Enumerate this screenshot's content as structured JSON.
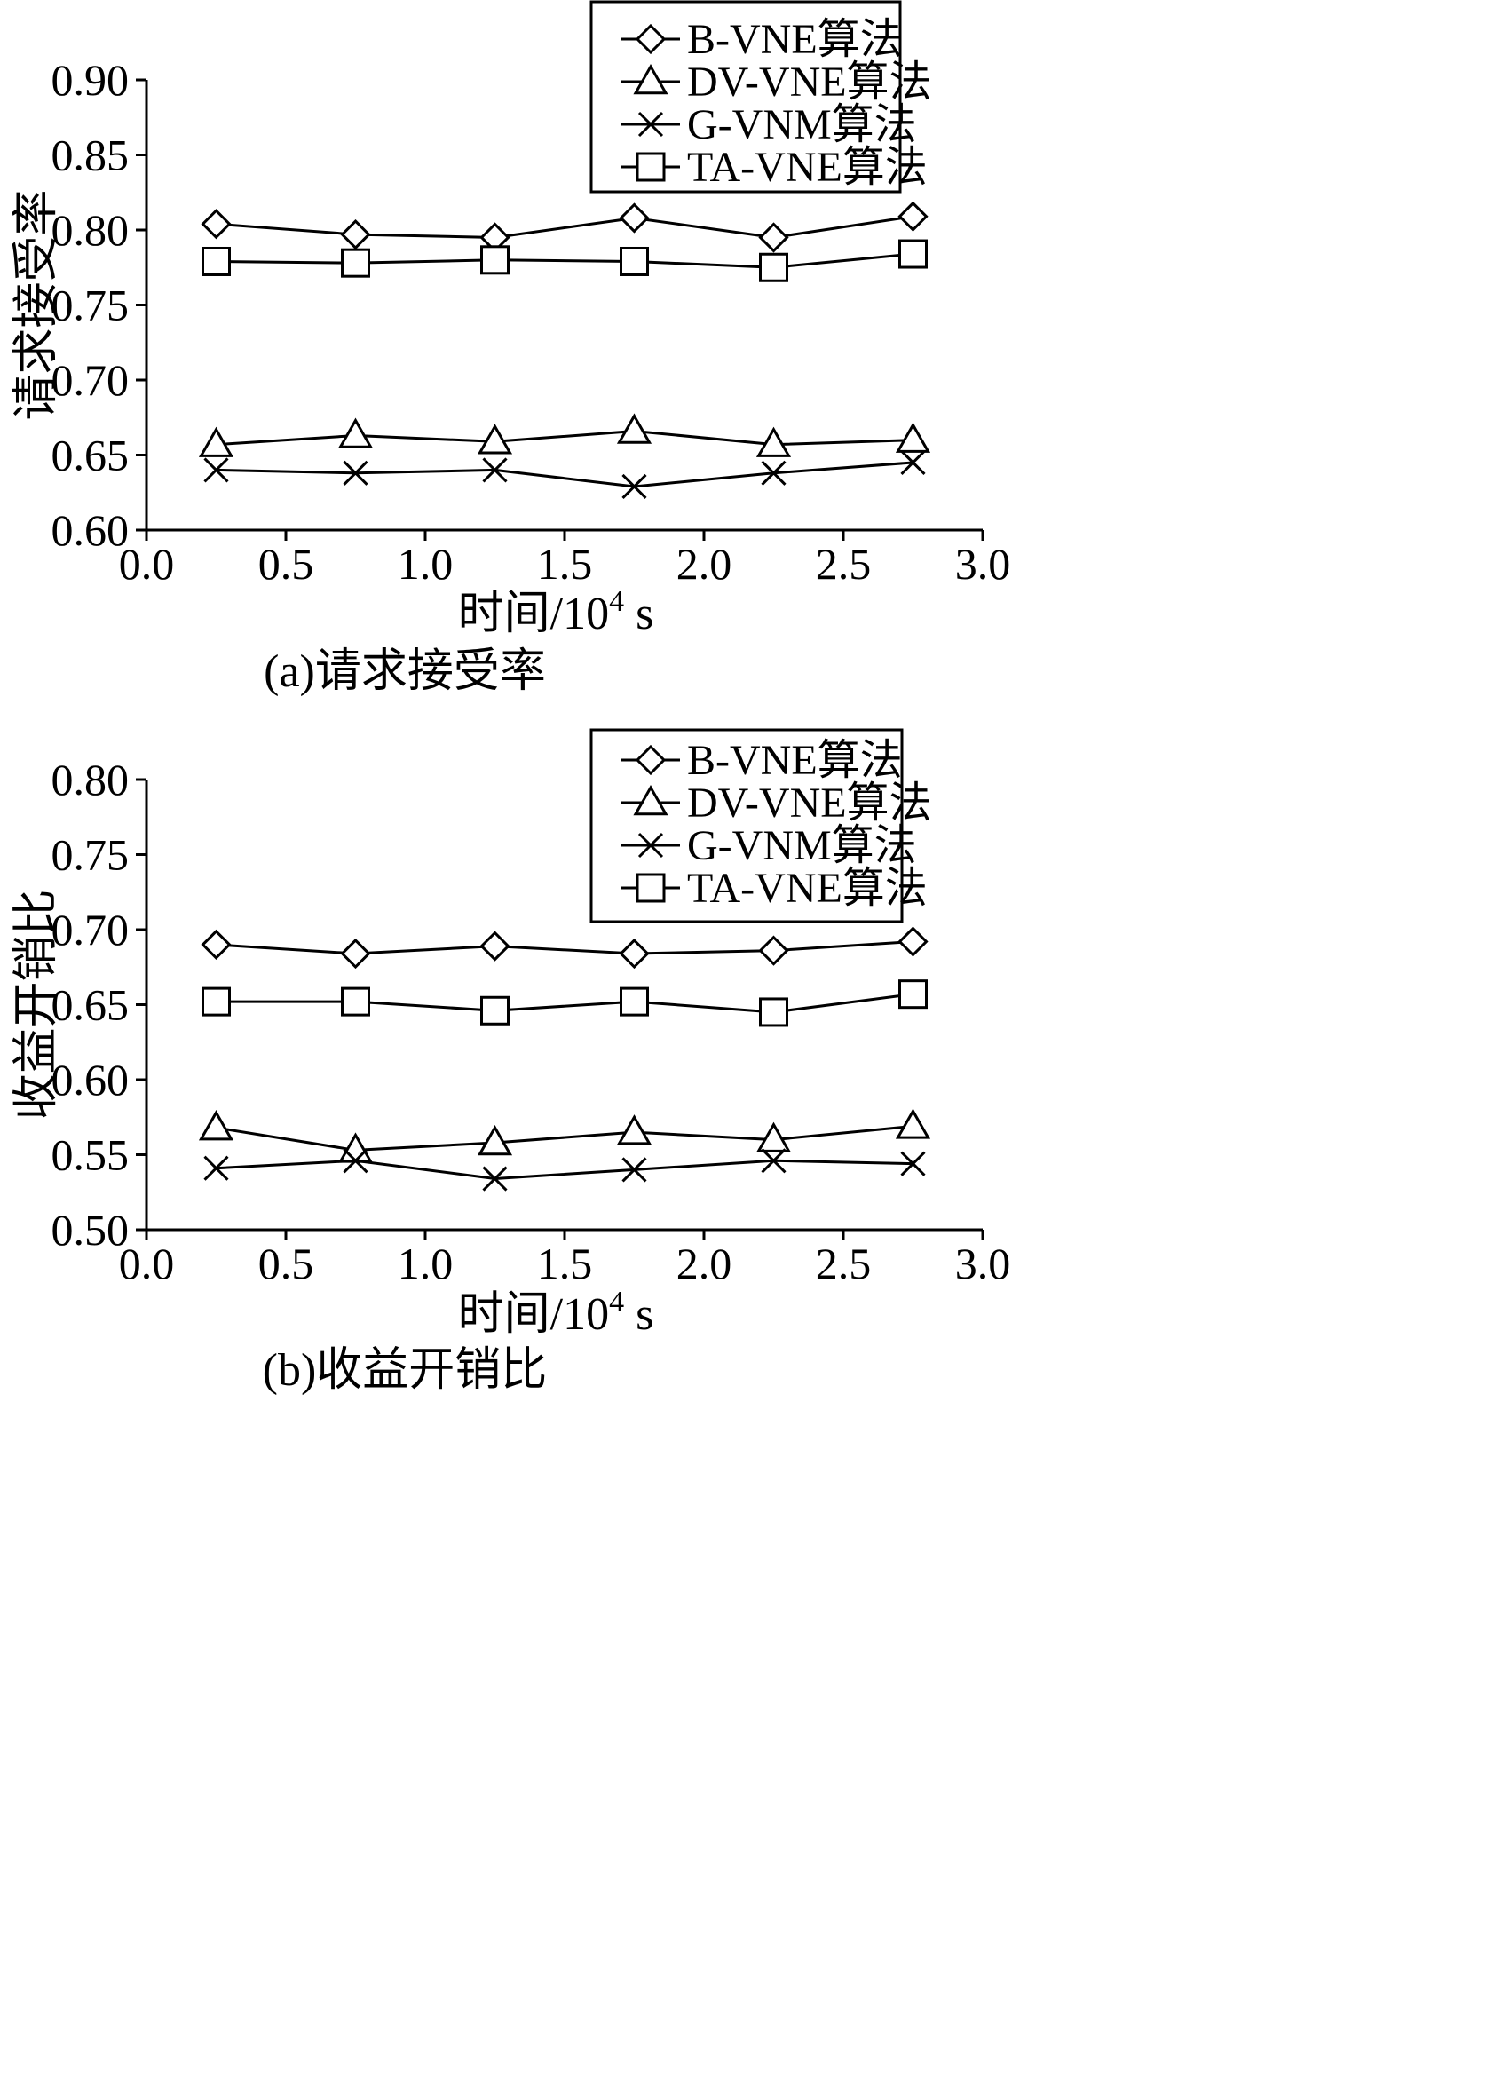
{
  "chart_data": [
    {
      "type": "line",
      "caption": "(a)请求接受率",
      "xlabel": "时间/10",
      "xlabel_sup": "4",
      "xlabel_unit": " s",
      "ylabel": "请求接受率",
      "xlim": [
        0.0,
        3.0
      ],
      "ylim": [
        0.6,
        0.9
      ],
      "xticks": [
        "0.0",
        "0.5",
        "1.0",
        "1.5",
        "2.0",
        "2.5",
        "3.0"
      ],
      "yticks": [
        "0.60",
        "0.65",
        "0.70",
        "0.75",
        "0.80",
        "0.85",
        "0.90"
      ],
      "legend_position": "top-right",
      "x": [
        0.25,
        0.75,
        1.25,
        1.75,
        2.25,
        2.75
      ],
      "series": [
        {
          "name": "B-VNE算法",
          "marker": "diamond",
          "values": [
            0.804,
            0.797,
            0.795,
            0.808,
            0.795,
            0.809
          ]
        },
        {
          "name": "DV-VNE算法",
          "marker": "triangle",
          "values": [
            0.657,
            0.663,
            0.659,
            0.666,
            0.657,
            0.66
          ]
        },
        {
          "name": "G-VNM算法",
          "marker": "x",
          "values": [
            0.64,
            0.638,
            0.64,
            0.629,
            0.638,
            0.645
          ]
        },
        {
          "name": "TA-VNE算法",
          "marker": "square",
          "values": [
            0.779,
            0.778,
            0.78,
            0.779,
            0.775,
            0.784
          ]
        }
      ]
    },
    {
      "type": "line",
      "caption": "(b)收益开销比",
      "xlabel": "时间/10",
      "xlabel_sup": "4",
      "xlabel_unit": " s",
      "ylabel": "收益开销比",
      "xlim": [
        0.0,
        3.0
      ],
      "ylim": [
        0.5,
        0.8
      ],
      "xticks": [
        "0.0",
        "0.5",
        "1.0",
        "1.5",
        "2.0",
        "2.5",
        "3.0"
      ],
      "yticks": [
        "0.50",
        "0.55",
        "0.60",
        "0.65",
        "0.70",
        "0.75",
        "0.80"
      ],
      "legend_position": "top-right",
      "x": [
        0.25,
        0.75,
        1.25,
        1.75,
        2.25,
        2.75
      ],
      "series": [
        {
          "name": "B-VNE算法",
          "marker": "diamond",
          "values": [
            0.69,
            0.684,
            0.689,
            0.684,
            0.686,
            0.692
          ]
        },
        {
          "name": "DV-VNE算法",
          "marker": "triangle",
          "values": [
            0.568,
            0.553,
            0.558,
            0.565,
            0.56,
            0.569
          ]
        },
        {
          "name": "G-VNM算法",
          "marker": "x",
          "values": [
            0.541,
            0.546,
            0.534,
            0.54,
            0.546,
            0.544
          ]
        },
        {
          "name": "TA-VNE算法",
          "marker": "square",
          "values": [
            0.652,
            0.652,
            0.646,
            0.652,
            0.645,
            0.657
          ]
        }
      ]
    }
  ]
}
